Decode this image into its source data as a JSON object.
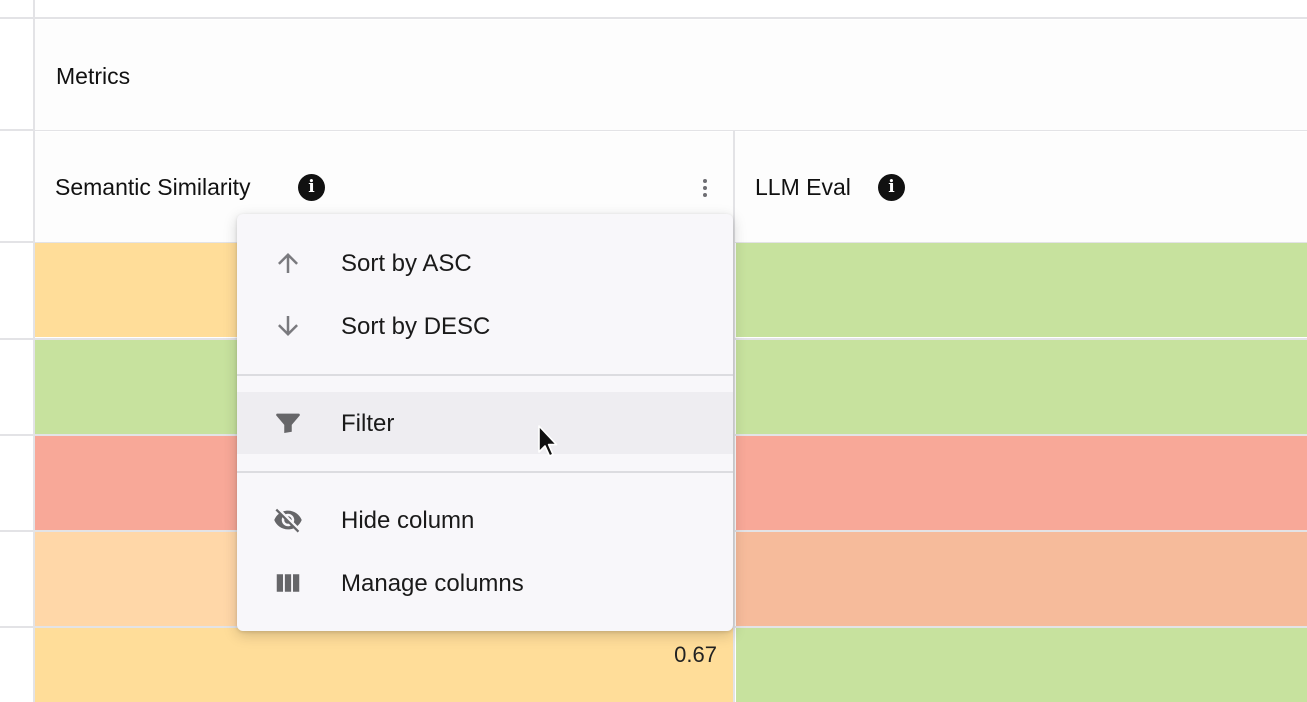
{
  "group_header": {
    "title": "Metrics"
  },
  "columns": [
    {
      "title": "Semantic Similarity",
      "info_icon": "info-icon",
      "menu_icon": "more-vertical-icon"
    },
    {
      "title": "LLM Eval",
      "info_icon": "info-icon"
    }
  ],
  "rows": [
    {
      "semantic_similarity": {
        "color": "#ffdd99",
        "value": ""
      },
      "llm_eval": {
        "color": "#c7e29e"
      }
    },
    {
      "semantic_similarity": {
        "color": "#c7e29e",
        "value": ""
      },
      "llm_eval": {
        "color": "#c7e29e"
      }
    },
    {
      "semantic_similarity": {
        "color": "#f8a898",
        "value": ""
      },
      "llm_eval": {
        "color": "#f8a898"
      }
    },
    {
      "semantic_similarity": {
        "color": "#ffd7a8",
        "value": ""
      },
      "llm_eval": {
        "color": "#f6bb9b"
      }
    },
    {
      "semantic_similarity": {
        "color": "#ffdd99",
        "value": "0.67"
      },
      "llm_eval": {
        "color": "#c7e29e"
      }
    }
  ],
  "column_menu": {
    "items": [
      {
        "label": "Sort by ASC",
        "icon": "arrow-up-icon"
      },
      {
        "label": "Sort by DESC",
        "icon": "arrow-down-icon"
      },
      {
        "label": "Filter",
        "icon": "filter-icon",
        "hovered": true
      },
      {
        "label": "Hide column",
        "icon": "eye-off-icon"
      },
      {
        "label": "Manage columns",
        "icon": "columns-icon"
      }
    ]
  },
  "colors": {
    "grid_line": "#e3e3e6",
    "menu_background": "#f8f7fa",
    "menu_hover": "#eeedf1"
  }
}
